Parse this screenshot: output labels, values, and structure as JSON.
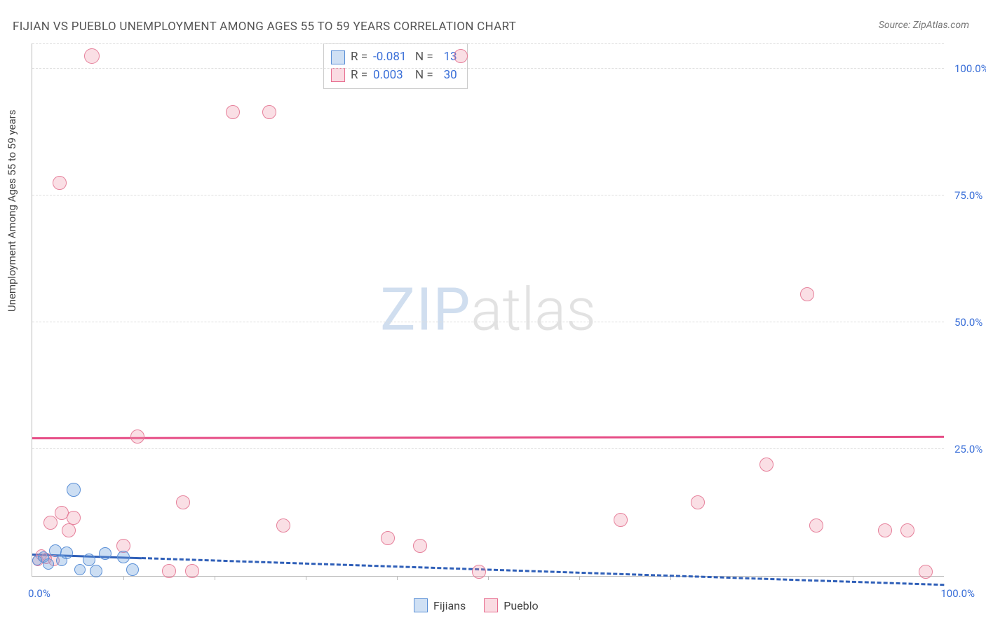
{
  "title": "FIJIAN VS PUEBLO UNEMPLOYMENT AMONG AGES 55 TO 59 YEARS CORRELATION CHART",
  "source_label": "Source: ZipAtlas.com",
  "y_axis_label": "Unemployment Among Ages 55 to 59 years",
  "watermark": {
    "zip": "ZIP",
    "atlas": "atlas"
  },
  "chart": {
    "type": "scatter",
    "xlim": [
      0,
      100
    ],
    "ylim": [
      0,
      105
    ],
    "background_color": "#ffffff",
    "grid_color": "#dddddd",
    "axis_color": "#bbbbbb",
    "y_ticks": [
      {
        "value": 25,
        "label": "25.0%"
      },
      {
        "value": 50,
        "label": "50.0%"
      },
      {
        "value": 75,
        "label": "75.0%"
      },
      {
        "value": 100,
        "label": "100.0%"
      }
    ],
    "x_ticks_minor": [
      10,
      20,
      30,
      40,
      50,
      60,
      70,
      80,
      90
    ],
    "x_tick_labels": [
      {
        "value": 0,
        "label": "0.0%"
      },
      {
        "value": 100,
        "label": "100.0%"
      }
    ],
    "series": [
      {
        "name": "Fijians",
        "label": "Fijians",
        "color_fill": "rgba(110,160,220,0.35)",
        "color_stroke": "#5a8fd6",
        "swatch_fill": "#cfe0f4",
        "swatch_stroke": "#5a8fd6",
        "marker_radius": 8,
        "R": "-0.081",
        "N": "13",
        "trend": {
          "y_at_x0": 4.0,
          "y_at_x100": -2.0,
          "solid_until_x": 12,
          "color": "#2f5fb8",
          "width": 3
        },
        "points": [
          {
            "x": 0.5,
            "y": 3.0,
            "r": 6
          },
          {
            "x": 1.2,
            "y": 3.8,
            "r": 7
          },
          {
            "x": 1.8,
            "y": 2.4,
            "r": 7
          },
          {
            "x": 2.5,
            "y": 5.0,
            "r": 8
          },
          {
            "x": 3.2,
            "y": 3.0,
            "r": 7
          },
          {
            "x": 3.8,
            "y": 4.6,
            "r": 8
          },
          {
            "x": 4.5,
            "y": 17.0,
            "r": 9
          },
          {
            "x": 5.2,
            "y": 1.2,
            "r": 7
          },
          {
            "x": 6.2,
            "y": 3.2,
            "r": 8
          },
          {
            "x": 7.0,
            "y": 1.0,
            "r": 8
          },
          {
            "x": 8.0,
            "y": 4.4,
            "r": 8
          },
          {
            "x": 10.0,
            "y": 3.8,
            "r": 8
          },
          {
            "x": 11.0,
            "y": 1.2,
            "r": 8
          }
        ]
      },
      {
        "name": "Pueblo",
        "label": "Pueblo",
        "color_fill": "rgba(240,150,170,0.30)",
        "color_stroke": "#e6809b",
        "swatch_fill": "#fadbe2",
        "swatch_stroke": "#e86f91",
        "marker_radius": 9,
        "R": "0.003",
        "N": "30",
        "trend": {
          "y_at_x0": 27.0,
          "y_at_x100": 27.3,
          "solid_until_x": 100,
          "color": "#e64d86",
          "width": 3
        },
        "points": [
          {
            "x": 0.6,
            "y": 3.0,
            "r": 7
          },
          {
            "x": 1.0,
            "y": 4.2,
            "r": 7
          },
          {
            "x": 1.5,
            "y": 3.4,
            "r": 7
          },
          {
            "x": 2.0,
            "y": 10.5,
            "r": 9
          },
          {
            "x": 2.4,
            "y": 3.0,
            "r": 7
          },
          {
            "x": 3.0,
            "y": 77.5,
            "r": 9
          },
          {
            "x": 3.2,
            "y": 12.5,
            "r": 9
          },
          {
            "x": 4.0,
            "y": 9.0,
            "r": 9
          },
          {
            "x": 4.5,
            "y": 11.5,
            "r": 9
          },
          {
            "x": 6.5,
            "y": 102.5,
            "r": 10
          },
          {
            "x": 10.0,
            "y": 6.0,
            "r": 9
          },
          {
            "x": 11.5,
            "y": 27.5,
            "r": 9
          },
          {
            "x": 15.0,
            "y": 1.0,
            "r": 9
          },
          {
            "x": 16.5,
            "y": 14.5,
            "r": 9
          },
          {
            "x": 17.5,
            "y": 1.0,
            "r": 9
          },
          {
            "x": 22.0,
            "y": 91.5,
            "r": 9
          },
          {
            "x": 26.0,
            "y": 91.5,
            "r": 9
          },
          {
            "x": 27.5,
            "y": 10.0,
            "r": 9
          },
          {
            "x": 39.0,
            "y": 7.5,
            "r": 9
          },
          {
            "x": 42.5,
            "y": 6.0,
            "r": 9
          },
          {
            "x": 47.0,
            "y": 102.5,
            "r": 9
          },
          {
            "x": 49.0,
            "y": 0.8,
            "r": 9
          },
          {
            "x": 64.5,
            "y": 11.0,
            "r": 9
          },
          {
            "x": 73.0,
            "y": 14.5,
            "r": 9
          },
          {
            "x": 80.5,
            "y": 22.0,
            "r": 9
          },
          {
            "x": 85.0,
            "y": 55.5,
            "r": 9
          },
          {
            "x": 86.0,
            "y": 10.0,
            "r": 9
          },
          {
            "x": 93.5,
            "y": 9.0,
            "r": 9
          },
          {
            "x": 96.0,
            "y": 9.0,
            "r": 9
          },
          {
            "x": 98.0,
            "y": 0.8,
            "r": 9
          }
        ]
      }
    ]
  },
  "stats_box_labels": {
    "R": "R =",
    "N": "N ="
  }
}
